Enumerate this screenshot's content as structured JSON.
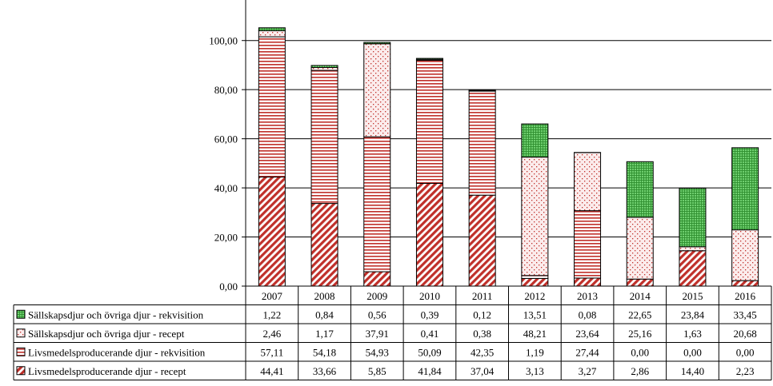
{
  "chart_data": {
    "type": "bar",
    "stacked": true,
    "categories": [
      "2007",
      "2008",
      "2009",
      "2010",
      "2011",
      "2012",
      "2013",
      "2014",
      "2015",
      "2016"
    ],
    "ylim": [
      0,
      110
    ],
    "yticks": [
      "0,00",
      "20,00",
      "40,00",
      "60,00",
      "80,00",
      "100,00"
    ],
    "ytick_values": [
      0,
      20,
      40,
      60,
      80,
      100
    ],
    "grid": true,
    "legend_placement": "table-left",
    "series": [
      {
        "name": "Livsmedelsproducerande djur - recept",
        "pattern": "diagonal",
        "color": "#c0302a",
        "values": [
          44.41,
          33.66,
          5.85,
          41.84,
          37.04,
          3.13,
          3.27,
          2.86,
          14.4,
          2.23
        ],
        "labels": [
          "44,41",
          "33,66",
          "5,85",
          "41,84",
          "37,04",
          "3,13",
          "3,27",
          "2,86",
          "14,40",
          "2,23"
        ]
      },
      {
        "name": "Livsmedelsproducerande djur - rekvisition",
        "pattern": "hlines",
        "color": "#c0302a",
        "values": [
          57.11,
          54.18,
          54.93,
          50.09,
          42.35,
          1.19,
          27.44,
          0.0,
          0.0,
          0.0
        ],
        "labels": [
          "57,11",
          "54,18",
          "54,93",
          "50,09",
          "42,35",
          "1,19",
          "27,44",
          "0,00",
          "0,00",
          "0,00"
        ]
      },
      {
        "name": "Sällskapsdjur och övriga djur - recept",
        "pattern": "dots",
        "color": "#c0302a",
        "values": [
          2.46,
          1.17,
          37.91,
          0.41,
          0.38,
          48.21,
          23.64,
          25.16,
          1.63,
          20.68
        ],
        "labels": [
          "2,46",
          "1,17",
          "37,91",
          "0,41",
          "0,38",
          "48,21",
          "23,64",
          "25,16",
          "1,63",
          "20,68"
        ]
      },
      {
        "name": "Sällskapsdjur och övriga djur - rekvisition",
        "pattern": "grid",
        "color": "#3a9a3a",
        "values": [
          1.22,
          0.84,
          0.56,
          0.39,
          0.12,
          13.51,
          0.08,
          22.65,
          23.84,
          33.45
        ],
        "labels": [
          "1,22",
          "0,84",
          "0,56",
          "0,39",
          "0,12",
          "13,51",
          "0,08",
          "22,65",
          "23,84",
          "33,45"
        ]
      }
    ]
  }
}
